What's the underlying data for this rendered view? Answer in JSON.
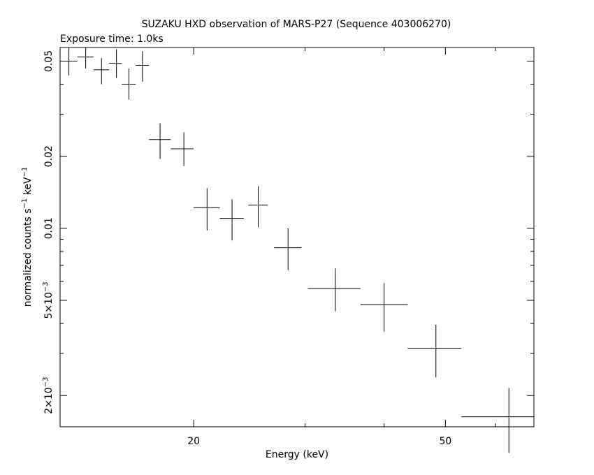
{
  "chart_data": {
    "type": "scatter",
    "title": "SUZAKU HXD observation of MARS-P27 (Sequence 403006270)",
    "subtitle": "Exposure time: 1.0ks",
    "xlabel": "Energy (keV)",
    "ylabel_text": "normalized counts s",
    "ylabel_exp1": "−1",
    "ylabel_mid": " keV",
    "ylabel_exp2": "−1",
    "x_scale": "log",
    "y_scale": "log",
    "xlim": [
      12.3,
      69.0
    ],
    "ylim": [
      0.00148,
      0.057
    ],
    "grid": false,
    "x_ticks": [
      {
        "value": 20,
        "label": "20"
      },
      {
        "value": 50,
        "label": "50"
      }
    ],
    "y_ticks": [
      {
        "value": 0.05,
        "label": "0.05"
      },
      {
        "value": 0.02,
        "label": "0.02"
      },
      {
        "value": 0.01,
        "label": "0.01"
      },
      {
        "value": 0.005,
        "mant": "5×10",
        "exp": "−3"
      },
      {
        "value": 0.002,
        "mant": "2×10",
        "exp": "−3"
      }
    ],
    "series": [
      {
        "points": [
          {
            "x": 12.7,
            "x_lo": 12.3,
            "x_hi": 13.1,
            "y": 0.05,
            "y_lo": 0.0435,
            "y_hi": 0.057
          },
          {
            "x": 13.5,
            "x_lo": 13.1,
            "x_hi": 13.9,
            "y": 0.052,
            "y_lo": 0.0465,
            "y_hi": 0.057
          },
          {
            "x": 14.3,
            "x_lo": 13.9,
            "x_hi": 14.7,
            "y": 0.046,
            "y_lo": 0.04,
            "y_hi": 0.0515
          },
          {
            "x": 15.1,
            "x_lo": 14.7,
            "x_hi": 15.4,
            "y": 0.049,
            "y_lo": 0.0425,
            "y_hi": 0.056
          },
          {
            "x": 15.8,
            "x_lo": 15.4,
            "x_hi": 16.2,
            "y": 0.04,
            "y_lo": 0.0345,
            "y_hi": 0.0465
          },
          {
            "x": 16.6,
            "x_lo": 16.2,
            "x_hi": 17.0,
            "y": 0.048,
            "y_lo": 0.041,
            "y_hi": 0.055
          },
          {
            "x": 17.7,
            "x_lo": 17.0,
            "x_hi": 18.4,
            "y": 0.0235,
            "y_lo": 0.0195,
            "y_hi": 0.0275
          },
          {
            "x": 19.3,
            "x_lo": 18.4,
            "x_hi": 20.0,
            "y": 0.0215,
            "y_lo": 0.0182,
            "y_hi": 0.0252
          },
          {
            "x": 21.0,
            "x_lo": 20.0,
            "x_hi": 22.0,
            "y": 0.0122,
            "y_lo": 0.0098,
            "y_hi": 0.0147
          },
          {
            "x": 23.0,
            "x_lo": 22.0,
            "x_hi": 24.0,
            "y": 0.011,
            "y_lo": 0.0089,
            "y_hi": 0.0132
          },
          {
            "x": 25.3,
            "x_lo": 24.4,
            "x_hi": 26.2,
            "y": 0.0125,
            "y_lo": 0.0101,
            "y_hi": 0.015
          },
          {
            "x": 28.2,
            "x_lo": 26.8,
            "x_hi": 29.6,
            "y": 0.0083,
            "y_lo": 0.0067,
            "y_hi": 0.01
          },
          {
            "x": 33.5,
            "x_lo": 30.3,
            "x_hi": 36.7,
            "y": 0.0056,
            "y_lo": 0.0045,
            "y_hi": 0.0068
          },
          {
            "x": 40.0,
            "x_lo": 36.7,
            "x_hi": 43.6,
            "y": 0.0048,
            "y_lo": 0.0037,
            "y_hi": 0.0059
          },
          {
            "x": 48.3,
            "x_lo": 43.6,
            "x_hi": 53.0,
            "y": 0.00315,
            "y_lo": 0.00238,
            "y_hi": 0.00395
          },
          {
            "x": 63.0,
            "x_lo": 53.0,
            "x_hi": 69.0,
            "y": 0.00163,
            "y_lo": 0.00115,
            "y_hi": 0.00215
          }
        ]
      }
    ]
  }
}
